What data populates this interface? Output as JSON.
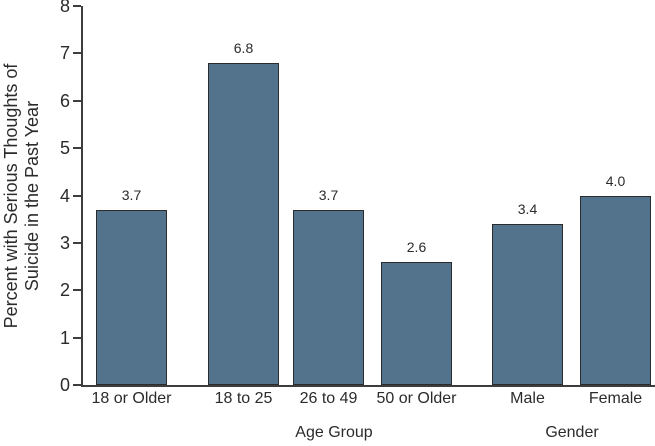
{
  "chart_data": {
    "type": "bar",
    "title": "",
    "xlabel": "",
    "ylabel": "Percent with Serious Thoughts of Suicide in the Past Year",
    "ylabel_lines": [
      "Percent with Serious Thoughts of",
      "Suicide in the Past Year"
    ],
    "categories": [
      "18 or Older",
      "18 to 25",
      "26 to 49",
      "50 or Older",
      "Male",
      "Female"
    ],
    "values": [
      3.7,
      6.8,
      3.7,
      2.6,
      3.4,
      4.0
    ],
    "value_labels": [
      "3.7",
      "6.8",
      "3.7",
      "2.6",
      "3.4",
      "4.0"
    ],
    "group_labels": [
      {
        "label": "Age Group",
        "categories": [
          "18 or Older",
          "18 to 25",
          "26 to 49",
          "50 or Older"
        ]
      },
      {
        "label": "Gender",
        "categories": [
          "Male",
          "Female"
        ]
      }
    ],
    "ylim": [
      0,
      8
    ],
    "yticks": [
      "0",
      "1",
      "2",
      "3",
      "4",
      "5",
      "6",
      "7",
      "8"
    ],
    "grid": false,
    "legend": null,
    "colors": {
      "bar_fill": "#53728C",
      "bar_border": "#2B2B2B",
      "axis": "#3D3D3D",
      "text": "#2B2B2B",
      "background": "#FFFFFF"
    }
  }
}
